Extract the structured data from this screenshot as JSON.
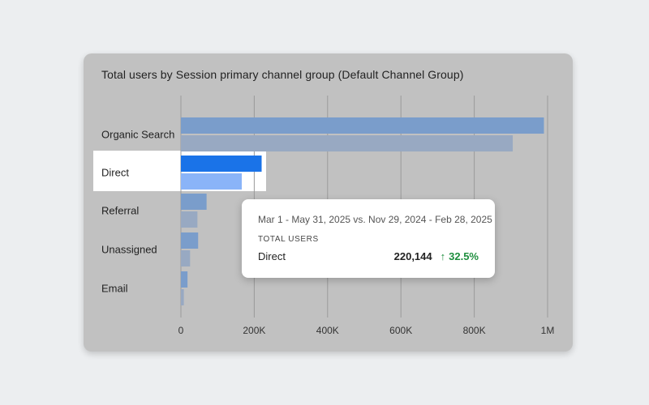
{
  "chart_data": {
    "type": "bar",
    "orientation": "horizontal",
    "title": "Total users by Session primary channel group (Default Channel Group)",
    "categories": [
      "Organic Search",
      "Direct",
      "Referral",
      "Unassigned",
      "Email"
    ],
    "series": [
      {
        "period": "current",
        "values": [
          990000,
          220144,
          70000,
          47000,
          18000
        ]
      },
      {
        "period": "previous",
        "values": [
          905000,
          166000,
          45000,
          25000,
          8000
        ]
      }
    ],
    "xlim": [
      0,
      1000000
    ],
    "ticks": [
      0,
      200000,
      400000,
      600000,
      800000,
      1000000
    ],
    "tick_labels": [
      "0",
      "200K",
      "400K",
      "600K",
      "800K",
      "1M"
    ],
    "grid": true,
    "highlighted_category": "Direct",
    "colors": {
      "current": "#7a9dcb",
      "previous": "#98a9c2",
      "highlight_current": "#1a73e8",
      "highlight_previous": "#8ab4f8",
      "gridline": "#9a9a9a"
    }
  },
  "tooltip": {
    "date_range": "Mar 1 - May 31, 2025 vs. Nov 29, 2024 - Feb 28, 2025",
    "metric": "TOTAL USERS",
    "channel": "Direct",
    "value": "220,144",
    "change_arrow": "↑",
    "change": "32.5%"
  }
}
